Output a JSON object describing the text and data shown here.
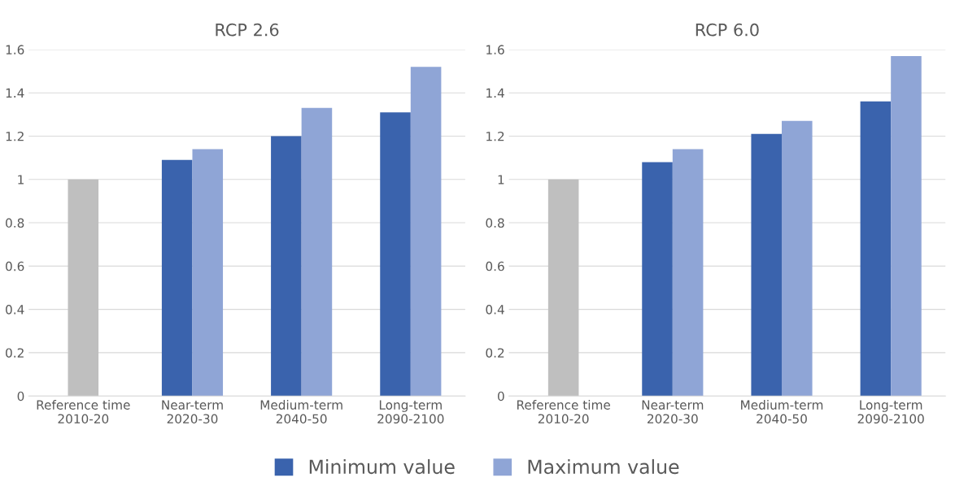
{
  "chart_data": [
    {
      "type": "bar",
      "title": "RCP 2.6",
      "categories": [
        "Reference time\n2010-20",
        "Near-term\n2020-30",
        "Medium-term\n2040-50",
        "Long-term\n2090-2100"
      ],
      "series": [
        {
          "color": "#3a63ad",
          "colors": [
            "#bfbfbf",
            "#3a63ad",
            "#3a63ad",
            "#3a63ad"
          ],
          "values": [
            1.0,
            1.09,
            1.2,
            1.31
          ]
        },
        {
          "color": "#8fa5d6",
          "values": [
            null,
            1.14,
            1.33,
            1.52
          ]
        }
      ],
      "ylim": [
        0,
        1.6
      ],
      "yticks": [
        0,
        0.2,
        0.4,
        0.6,
        0.8,
        1,
        1.2,
        1.4,
        1.6
      ],
      "grid": "y"
    },
    {
      "type": "bar",
      "title": "RCP 6.0",
      "categories": [
        "Reference time\n2010-20",
        "Near-term\n2020-30",
        "Medium-term\n2040-50",
        "Long-term\n2090-2100"
      ],
      "series": [
        {
          "name": "Minimum value",
          "color": "#3a63ad",
          "colors": [
            "#bfbfbf",
            "#3a63ad",
            "#3a63ad",
            "#3a63ad"
          ],
          "values": [
            1.0,
            1.08,
            1.21,
            1.36
          ]
        },
        {
          "name": "Maximum value",
          "color": "#8fa5d6",
          "values": [
            null,
            1.14,
            1.27,
            1.57
          ]
        }
      ],
      "ylim": [
        0,
        1.6
      ],
      "yticks": [
        0,
        0.2,
        0.4,
        0.6,
        0.8,
        1,
        1.2,
        1.4,
        1.6
      ],
      "grid": "y",
      "legend": "bottom"
    }
  ]
}
